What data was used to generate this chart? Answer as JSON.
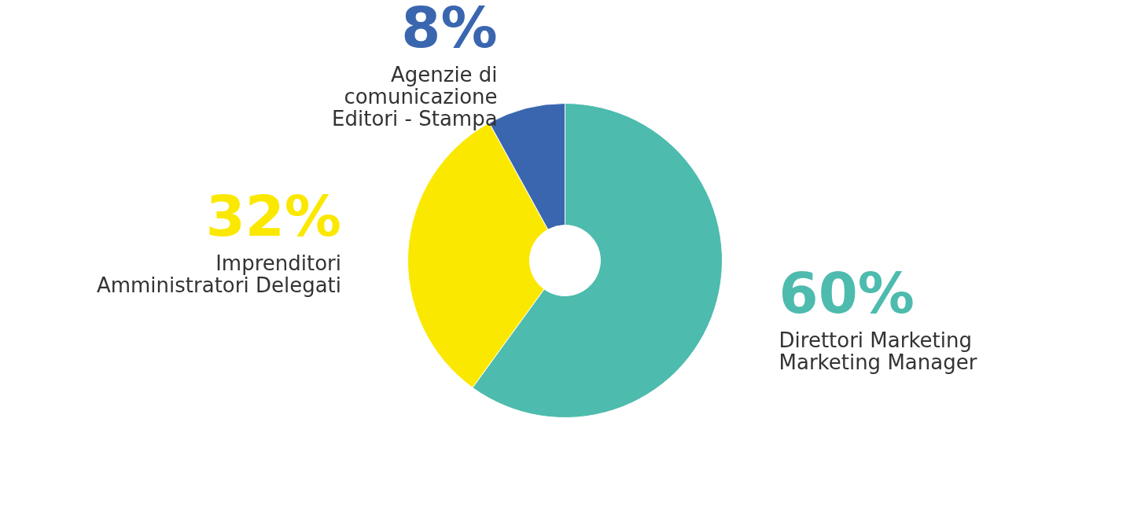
{
  "chart_data": {
    "type": "donut",
    "categories": [
      "Direttori Marketing\nMarketing Manager",
      "Imprenditori\nAmministratori Delegati",
      "Agenzie di\ncomunicazione\nEditori - Stampa"
    ],
    "values": [
      60,
      32,
      8
    ],
    "value_labels": [
      "60%",
      "32%",
      "8%"
    ],
    "colors": [
      "#4dbbad",
      "#fbe800",
      "#3a66b0"
    ],
    "legend": false
  }
}
